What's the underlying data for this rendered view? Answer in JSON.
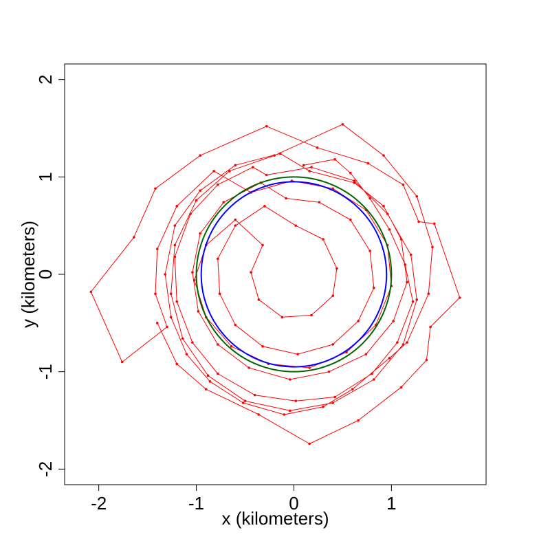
{
  "chart_data": {
    "type": "scatter",
    "xlabel": "x (kilometers)",
    "ylabel": "y (kilometers)",
    "xlim": [
      -2.35,
      1.97
    ],
    "ylim": [
      -2.16,
      2.16
    ],
    "xticks": [
      -2,
      -1,
      0,
      1
    ],
    "yticks": [
      -2,
      -1,
      0,
      1,
      2
    ],
    "xtick_labels": [
      "-2",
      "-1",
      "0",
      "1"
    ],
    "ytick_labels": [
      "-2",
      "-1",
      "0",
      "1",
      "2"
    ],
    "grid": false,
    "legend": "none",
    "series": [
      {
        "color": "#ff0000",
        "style": "line-with-points",
        "points": [
          [
            0.1,
            1.12
          ],
          [
            0.42,
            1.18
          ],
          [
            0.58,
            1.04
          ],
          [
            0.78,
            0.78
          ],
          [
            0.98,
            0.46
          ],
          [
            1.14,
            0.1
          ],
          [
            1.22,
            -0.28
          ],
          [
            1.06,
            -0.7
          ],
          [
            0.8,
            -1.02
          ],
          [
            0.42,
            -1.26
          ],
          [
            0.02,
            -1.3
          ],
          [
            -0.4,
            -1.24
          ],
          [
            -0.78,
            -1.02
          ],
          [
            -1.04,
            -0.7
          ],
          [
            -1.2,
            -0.28
          ],
          [
            -1.22,
            0.18
          ],
          [
            -1.06,
            0.62
          ],
          [
            -0.78,
            0.92
          ],
          [
            -0.42,
            1.1
          ],
          [
            -0.28,
            1.02
          ],
          [
            0.18,
            1.1
          ],
          [
            0.62,
            0.96
          ],
          [
            0.96,
            0.62
          ],
          [
            1.2,
            0.2
          ],
          [
            1.26,
            -0.26
          ],
          [
            1.12,
            -0.72
          ],
          [
            0.82,
            -1.08
          ],
          [
            0.4,
            -1.32
          ],
          [
            -0.04,
            -1.4
          ],
          [
            -0.5,
            -1.3
          ],
          [
            -0.88,
            -1.04
          ],
          [
            -1.14,
            -0.66
          ],
          [
            -1.26,
            -0.2
          ],
          [
            -1.22,
            0.3
          ],
          [
            -1.0,
            0.76
          ],
          [
            -0.66,
            1.06
          ],
          [
            -0.2,
            1.22
          ],
          [
            0.5,
            1.54
          ],
          [
            0.92,
            1.22
          ],
          [
            1.26,
            0.8
          ],
          [
            1.42,
            0.28
          ],
          [
            1.38,
            -0.2
          ],
          [
            1.16,
            -0.7
          ],
          [
            0.98,
            -0.86
          ],
          [
            0.6,
            -1.18
          ],
          [
            0.3,
            -1.36
          ],
          [
            -0.1,
            -1.44
          ],
          [
            -0.52,
            -1.32
          ],
          [
            -0.86,
            -1.1
          ],
          [
            -1.1,
            -0.82
          ],
          [
            -1.26,
            -0.44
          ],
          [
            -1.32,
            0.0
          ],
          [
            -1.22,
            0.5
          ],
          [
            -0.96,
            0.86
          ],
          [
            -0.6,
            1.12
          ],
          [
            -0.14,
            1.24
          ],
          [
            0.16,
            1.06
          ],
          [
            0.62,
            0.94
          ],
          [
            0.92,
            0.7
          ],
          [
            1.1,
            0.36
          ],
          [
            1.16,
            -0.08
          ],
          [
            1.02,
            -0.48
          ],
          [
            0.74,
            -0.82
          ],
          [
            0.36,
            -1.0
          ],
          [
            -0.04,
            -1.08
          ],
          [
            -0.46,
            -0.96
          ],
          [
            -0.78,
            -0.72
          ],
          [
            -0.98,
            -0.38
          ],
          [
            -1.04,
            0.02
          ],
          [
            -0.96,
            0.42
          ],
          [
            -0.72,
            0.74
          ],
          [
            -0.34,
            0.94
          ],
          [
            -0.08,
            0.78
          ],
          [
            0.26,
            0.74
          ],
          [
            0.58,
            0.56
          ],
          [
            0.78,
            0.24
          ],
          [
            0.82,
            -0.14
          ],
          [
            0.66,
            -0.48
          ],
          [
            0.4,
            -0.72
          ],
          [
            0.04,
            -0.82
          ],
          [
            -0.32,
            -0.74
          ],
          [
            -0.6,
            -0.52
          ],
          [
            -0.76,
            -0.2
          ],
          [
            -0.78,
            0.16
          ],
          [
            -0.6,
            0.5
          ],
          [
            -0.3,
            0.7
          ],
          [
            0.02,
            0.5
          ],
          [
            0.3,
            0.36
          ],
          [
            0.44,
            0.06
          ],
          [
            0.4,
            -0.22
          ],
          [
            0.18,
            -0.42
          ],
          [
            -0.12,
            -0.44
          ],
          [
            -0.36,
            -0.26
          ],
          [
            -0.44,
            0.02
          ],
          [
            -0.32,
            0.3
          ],
          [
            -0.6,
            0.56
          ],
          [
            -0.9,
            0.3
          ],
          [
            -1.02,
            -0.06
          ],
          [
            -0.9,
            -0.44
          ],
          [
            -0.64,
            -0.74
          ],
          [
            -0.26,
            -0.92
          ],
          [
            0.16,
            -0.96
          ],
          [
            0.54,
            -0.8
          ],
          [
            0.84,
            -0.52
          ],
          [
            1.0,
            -0.12
          ],
          [
            0.96,
            0.3
          ],
          [
            0.74,
            0.66
          ],
          [
            0.4,
            0.88
          ],
          [
            -0.02,
            0.96
          ],
          [
            -0.44,
            0.84
          ],
          [
            -0.82,
            1.06
          ],
          [
            -1.2,
            0.7
          ],
          [
            -1.4,
            0.26
          ],
          [
            -1.42,
            -0.2
          ],
          [
            -1.3,
            -0.54
          ],
          [
            -1.76,
            -0.9
          ],
          [
            -2.08,
            -0.18
          ],
          [
            -1.64,
            0.38
          ],
          [
            -1.42,
            0.88
          ],
          [
            -0.96,
            1.22
          ],
          [
            -0.28,
            1.52
          ],
          [
            0.24,
            1.3
          ],
          [
            0.76,
            1.14
          ],
          [
            1.12,
            0.92
          ],
          [
            1.28,
            0.54
          ],
          [
            1.44,
            0.52
          ],
          [
            1.7,
            -0.24
          ],
          [
            1.4,
            -0.54
          ],
          [
            1.36,
            -0.88
          ],
          [
            1.1,
            -1.16
          ],
          [
            0.66,
            -1.5
          ],
          [
            0.16,
            -1.74
          ],
          [
            -0.36,
            -1.44
          ],
          [
            -0.9,
            -1.18
          ],
          [
            -1.2,
            -0.92
          ],
          [
            -1.4,
            -0.5
          ]
        ]
      }
    ],
    "circles": [
      {
        "cx": 0,
        "cy": 0,
        "r": 0.95,
        "color": "#0000ff"
      },
      {
        "cx": 0,
        "cy": 0,
        "r": 1.0,
        "color": "#006400"
      }
    ]
  }
}
